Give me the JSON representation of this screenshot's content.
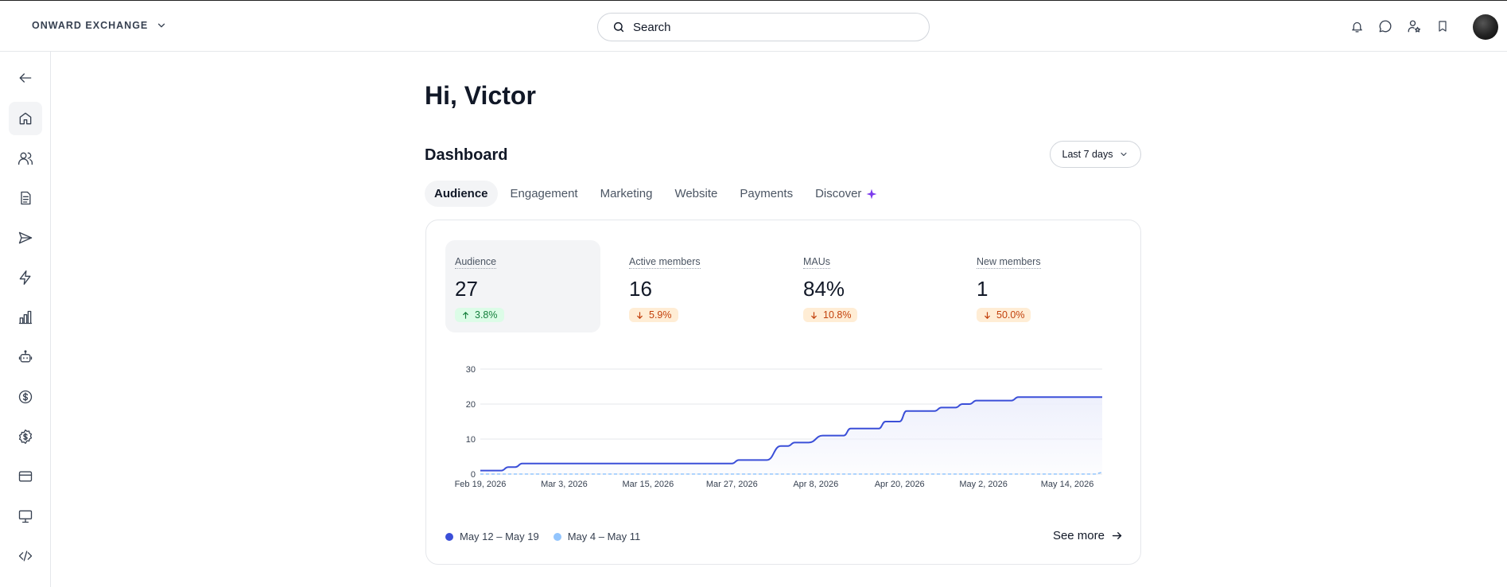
{
  "topbar": {
    "brand": "ONWARD EXCHANGE",
    "search_placeholder": "Search",
    "icons": [
      "bell-icon",
      "chat-icon",
      "user-star-icon",
      "bookmark-icon"
    ]
  },
  "sidebar": {
    "items": [
      {
        "name": "back",
        "icon": "arrow-left-icon"
      },
      {
        "name": "home",
        "icon": "home-icon",
        "active": true
      },
      {
        "name": "members",
        "icon": "users-icon"
      },
      {
        "name": "posts",
        "icon": "document-icon"
      },
      {
        "name": "send",
        "icon": "send-icon"
      },
      {
        "name": "automations",
        "icon": "bolt-icon"
      },
      {
        "name": "analytics",
        "icon": "bar-chart-icon"
      },
      {
        "name": "bot",
        "icon": "robot-icon"
      },
      {
        "name": "payments",
        "icon": "dollar-circle-icon"
      },
      {
        "name": "monetization",
        "icon": "dollar-badge-icon"
      },
      {
        "name": "billing",
        "icon": "credit-card-icon"
      },
      {
        "name": "website",
        "icon": "monitor-icon"
      },
      {
        "name": "developer",
        "icon": "code-icon"
      }
    ]
  },
  "main": {
    "greeting": "Hi, Victor",
    "dashboard_title": "Dashboard",
    "range_label": "Last 7 days",
    "tabs": [
      {
        "label": "Audience",
        "active": true
      },
      {
        "label": "Engagement"
      },
      {
        "label": "Marketing"
      },
      {
        "label": "Website"
      },
      {
        "label": "Payments"
      },
      {
        "label": "Discover"
      }
    ]
  },
  "metrics": [
    {
      "label": "Audience",
      "value": "27",
      "change": "3.8%",
      "direction": "up"
    },
    {
      "label": "Active members",
      "value": "16",
      "change": "5.9%",
      "direction": "down"
    },
    {
      "label": "MAUs",
      "value": "84%",
      "change": "10.8%",
      "direction": "down"
    },
    {
      "label": "New members",
      "value": "1",
      "change": "50.0%",
      "direction": "down"
    }
  ],
  "chart_data": {
    "type": "line",
    "x_tick_labels": [
      "Feb 19, 2026",
      "Mar 3, 2026",
      "Mar 15, 2026",
      "Mar 27, 2026",
      "Apr 8, 2026",
      "Apr 20, 2026",
      "May 2, 2026",
      "May 14, 2026"
    ],
    "y_ticks": [
      0,
      10,
      20,
      30
    ],
    "ylim": [
      0,
      30
    ],
    "x_range": [
      "Feb 19, 2026",
      "May 19, 2026"
    ],
    "grid": true,
    "colors": {
      "current": "#3b4fd8",
      "previous": "#93c5fd",
      "fill": "#eef0fc"
    },
    "series": [
      {
        "name": "May 12 – May 19",
        "points": [
          [
            "Feb 19",
            1
          ],
          [
            "Feb 22",
            1
          ],
          [
            "Feb 23",
            2
          ],
          [
            "Feb 24",
            2
          ],
          [
            "Feb 25",
            3
          ],
          [
            "Mar 3",
            3
          ],
          [
            "Mar 15",
            3
          ],
          [
            "Mar 27",
            3
          ],
          [
            "Mar 28",
            4
          ],
          [
            "Apr 1",
            4
          ],
          [
            "Apr 3",
            8
          ],
          [
            "Apr 4",
            8
          ],
          [
            "Apr 5",
            9
          ],
          [
            "Apr 7",
            9
          ],
          [
            "Apr 9",
            11
          ],
          [
            "Apr 12",
            11
          ],
          [
            "Apr 13",
            13
          ],
          [
            "Apr 17",
            13
          ],
          [
            "Apr 18",
            15
          ],
          [
            "Apr 20",
            15
          ],
          [
            "Apr 21",
            18
          ],
          [
            "Apr 25",
            18
          ],
          [
            "Apr 26",
            19
          ],
          [
            "Apr 28",
            19
          ],
          [
            "Apr 29",
            20
          ],
          [
            "Apr 30",
            20
          ],
          [
            "May 1",
            21
          ],
          [
            "May 6",
            21
          ],
          [
            "May 7",
            22
          ],
          [
            "May 19",
            22
          ]
        ]
      },
      {
        "name": "May 4 – May 11",
        "points": [
          [
            "Feb 19",
            0
          ],
          [
            "May 18",
            0
          ],
          [
            "May 19",
            0.5
          ]
        ]
      }
    ],
    "legend_position": "bottom-left"
  },
  "footer": {
    "see_more": "See more"
  }
}
